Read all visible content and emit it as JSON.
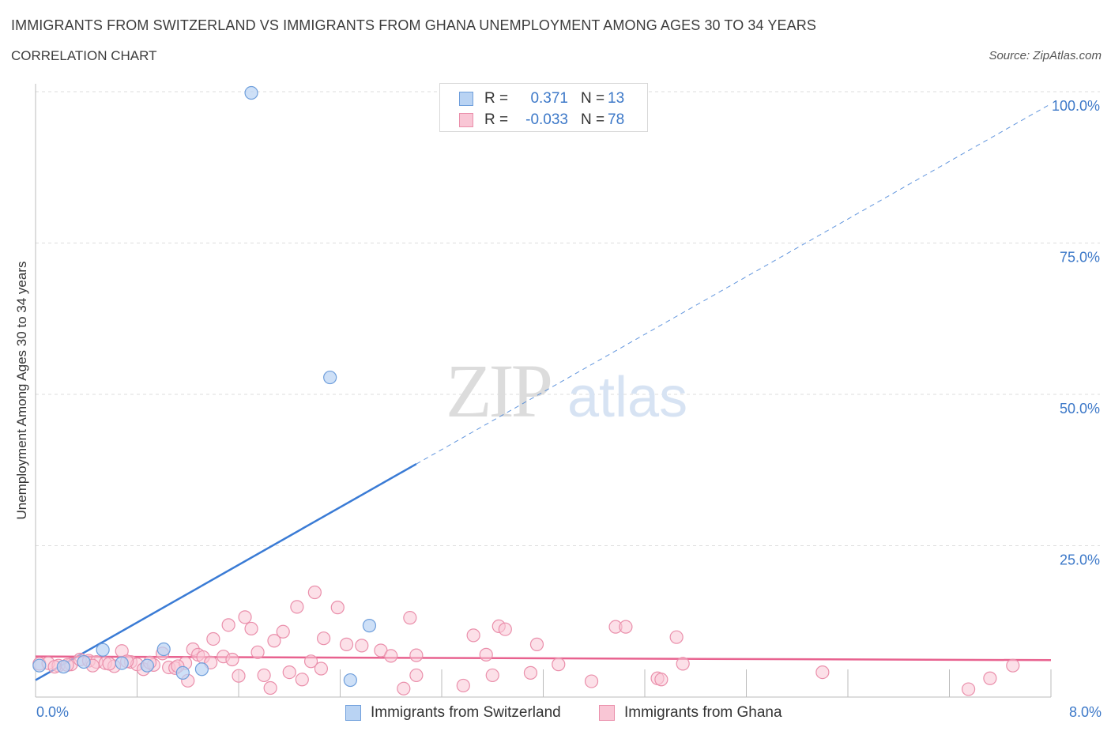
{
  "title": "IMMIGRANTS FROM SWITZERLAND VS IMMIGRANTS FROM GHANA UNEMPLOYMENT AMONG AGES 30 TO 34 YEARS",
  "subtitle": "CORRELATION CHART",
  "source": "Source: ZipAtlas.com",
  "watermark": {
    "zip": "ZIP",
    "atlas": "atlas"
  },
  "legend": {
    "r_label": "R =",
    "n_label": "N =",
    "series": [
      {
        "name": "Immigrants from Switzerland",
        "r": "0.371",
        "n": "13"
      },
      {
        "name": "Immigrants from Ghana",
        "r": "-0.033",
        "n": "78"
      }
    ]
  },
  "colors": {
    "switzerland_fill": "#b9d3f3",
    "switzerland_stroke": "#6f9fdc",
    "switzerland_line": "#3a7bd5",
    "ghana_fill": "#f9c6d5",
    "ghana_stroke": "#ea8fab",
    "ghana_line": "#e8628f",
    "tick_label": "#3c78c8",
    "grid": "#dddddd"
  },
  "chart_data": {
    "type": "scatter",
    "title": "IMMIGRANTS FROM SWITZERLAND VS IMMIGRANTS FROM GHANA UNEMPLOYMENT AMONG AGES 30 TO 34 YEARS",
    "xlabel": "",
    "ylabel": "Unemployment Among Ages 30 to 34 years",
    "xlim": [
      0,
      8
    ],
    "ylim": [
      0,
      100
    ],
    "x_tick_labels": [
      "0.0%",
      "8.0%"
    ],
    "y_ticks": [
      25,
      50,
      75,
      100
    ],
    "y_tick_labels": [
      "25.0%",
      "50.0%",
      "75.0%",
      "100.0%"
    ],
    "grid": true,
    "series": [
      {
        "name": "Immigrants from Switzerland",
        "points": [
          [
            0.03,
            5.2
          ],
          [
            0.22,
            5.0
          ],
          [
            0.38,
            5.8
          ],
          [
            0.53,
            7.8
          ],
          [
            0.68,
            5.6
          ],
          [
            0.88,
            5.2
          ],
          [
            1.01,
            7.9
          ],
          [
            1.16,
            4.0
          ],
          [
            1.31,
            4.6
          ],
          [
            1.7,
            99.8
          ],
          [
            2.32,
            52.8
          ],
          [
            2.48,
            2.8
          ],
          [
            2.63,
            11.8
          ]
        ],
        "trend": {
          "x0": 0.0,
          "y0": 2.8,
          "x1": 3.0,
          "y1": 38.5,
          "x_ext": 8.0,
          "y_ext": 98.0
        }
      },
      {
        "name": "Immigrants from Ghana",
        "points": [
          [
            0.03,
            5.5
          ],
          [
            0.1,
            5.6
          ],
          [
            0.18,
            5.2
          ],
          [
            0.28,
            5.4
          ],
          [
            0.35,
            6.2
          ],
          [
            0.42,
            6.0
          ],
          [
            0.48,
            5.8
          ],
          [
            0.55,
            5.6
          ],
          [
            0.62,
            5.1
          ],
          [
            0.68,
            7.6
          ],
          [
            0.75,
            5.8
          ],
          [
            0.8,
            5.4
          ],
          [
            0.85,
            4.6
          ],
          [
            0.93,
            5.3
          ],
          [
            1.0,
            7.2
          ],
          [
            1.05,
            4.9
          ],
          [
            1.1,
            4.8
          ],
          [
            1.18,
            5.6
          ],
          [
            1.2,
            2.7
          ],
          [
            1.24,
            7.9
          ],
          [
            1.28,
            7.0
          ],
          [
            1.32,
            6.6
          ],
          [
            1.38,
            5.7
          ],
          [
            1.4,
            9.6
          ],
          [
            1.48,
            6.7
          ],
          [
            1.52,
            11.9
          ],
          [
            1.55,
            6.2
          ],
          [
            1.6,
            3.5
          ],
          [
            1.65,
            13.2
          ],
          [
            1.7,
            11.3
          ],
          [
            1.75,
            7.4
          ],
          [
            1.8,
            3.6
          ],
          [
            1.85,
            1.5
          ],
          [
            1.88,
            9.3
          ],
          [
            1.95,
            10.8
          ],
          [
            2.0,
            4.1
          ],
          [
            2.06,
            14.9
          ],
          [
            2.1,
            2.9
          ],
          [
            2.17,
            5.9
          ],
          [
            2.2,
            17.3
          ],
          [
            2.25,
            4.7
          ],
          [
            2.27,
            9.7
          ],
          [
            2.38,
            14.8
          ],
          [
            2.45,
            8.7
          ],
          [
            2.57,
            8.5
          ],
          [
            2.72,
            7.7
          ],
          [
            2.8,
            6.8
          ],
          [
            2.9,
            1.4
          ],
          [
            2.95,
            13.1
          ],
          [
            3.0,
            3.6
          ],
          [
            3.0,
            6.9
          ],
          [
            3.37,
            1.9
          ],
          [
            3.45,
            10.2
          ],
          [
            3.55,
            7.0
          ],
          [
            3.6,
            3.6
          ],
          [
            3.65,
            11.7
          ],
          [
            3.7,
            11.2
          ],
          [
            3.9,
            4.0
          ],
          [
            3.95,
            8.7
          ],
          [
            4.12,
            5.4
          ],
          [
            4.38,
            2.6
          ],
          [
            4.57,
            11.6
          ],
          [
            4.65,
            11.6
          ],
          [
            4.9,
            3.1
          ],
          [
            4.93,
            2.9
          ],
          [
            5.05,
            9.9
          ],
          [
            5.1,
            5.5
          ],
          [
            6.2,
            4.1
          ],
          [
            7.35,
            1.3
          ],
          [
            7.52,
            3.1
          ],
          [
            7.7,
            5.2
          ],
          [
            0.15,
            5.0
          ],
          [
            0.25,
            5.3
          ],
          [
            0.45,
            5.2
          ],
          [
            0.58,
            5.5
          ],
          [
            0.72,
            5.9
          ],
          [
            0.9,
            5.7
          ],
          [
            1.12,
            5.1
          ]
        ],
        "trend": {
          "x0": 0.0,
          "y0": 6.7,
          "x1": 8.0,
          "y1": 6.1
        }
      }
    ]
  }
}
